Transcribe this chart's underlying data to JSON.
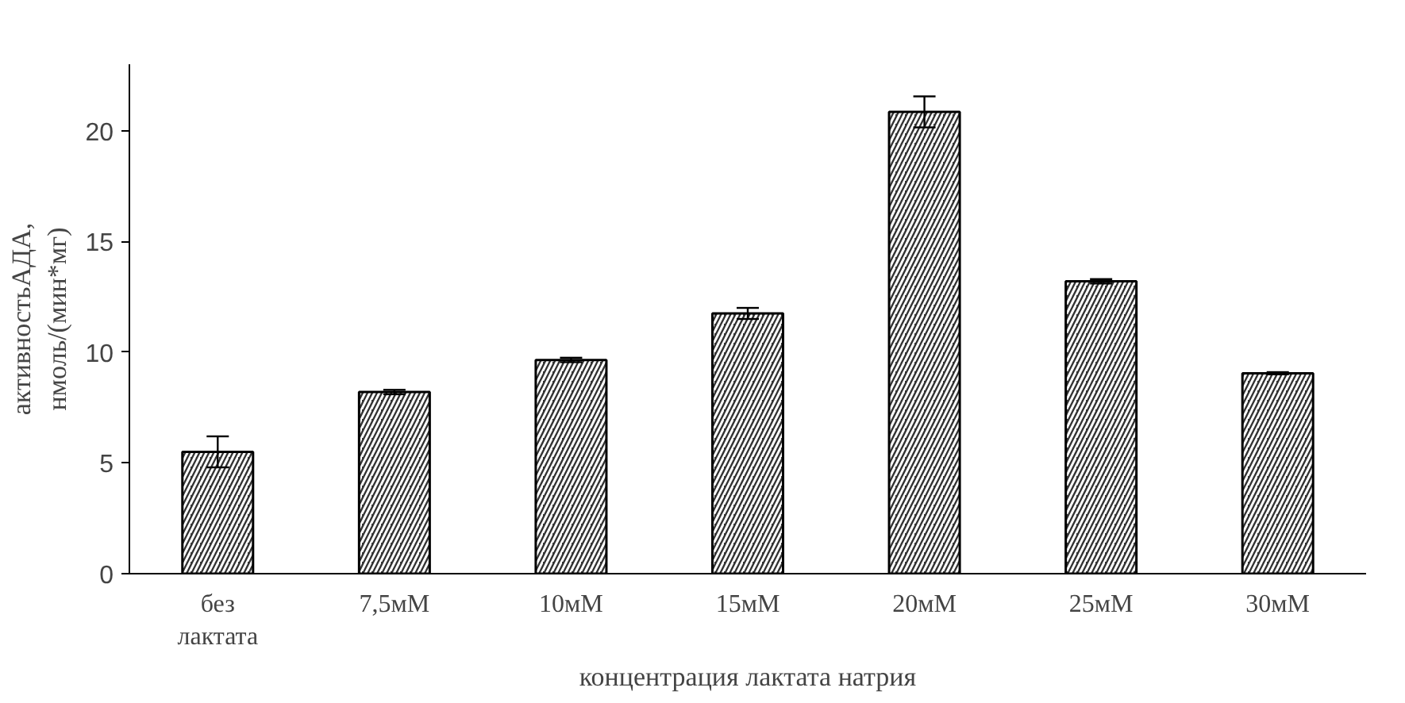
{
  "chart_data": {
    "type": "bar",
    "xlabel": "концентрация лактата натрия",
    "ylabel": "активностьАДА, нмоль/(мин*мг)",
    "categories": [
      "без лактата",
      "7,5мМ",
      "10мМ",
      "15мМ",
      "20мМ",
      "25мМ",
      "30мМ"
    ],
    "values": [
      5.5,
      8.2,
      9.65,
      11.75,
      20.85,
      13.2,
      9.05
    ],
    "errors": [
      0.7,
      0.1,
      0.1,
      0.25,
      0.7,
      0.1,
      0.05
    ],
    "color": "#333333",
    "ylim": [
      0,
      23
    ],
    "yticks": [
      0,
      5,
      10,
      15,
      20
    ],
    "grid": false
  }
}
